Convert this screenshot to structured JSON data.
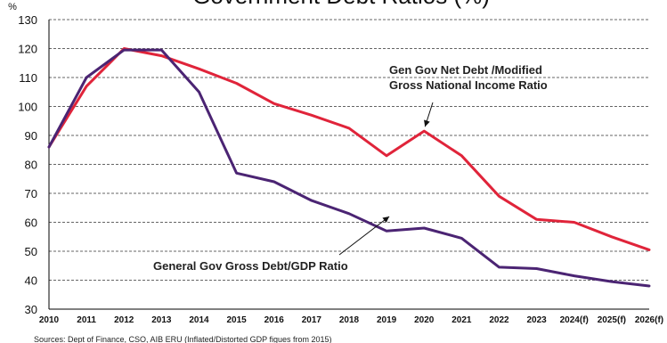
{
  "chart_data": {
    "type": "line",
    "title": "Government Debt Ratios (%)",
    "ylabel": "%",
    "ylim": [
      30,
      130
    ],
    "yticks": [
      30,
      40,
      50,
      60,
      70,
      80,
      90,
      100,
      110,
      120,
      130
    ],
    "categories": [
      "2010",
      "2011",
      "2012",
      "2013",
      "2014",
      "2015",
      "2016",
      "2017",
      "2018",
      "2019",
      "2020",
      "2021",
      "2022",
      "2023",
      "2024(f)",
      "2025(f)",
      "2026(f)"
    ],
    "grid": true,
    "legend": "none",
    "series": [
      {
        "name": "Gen Gov Net Debt /Modified Gross National Income Ratio",
        "color": "#E0243A",
        "values": [
          86,
          107,
          120,
          117.5,
          113,
          108,
          101,
          97,
          92.5,
          83,
          91.5,
          83,
          69,
          61,
          60,
          55,
          50.5
        ]
      },
      {
        "name": "General Gov Gross Debt/GDP Ratio",
        "color": "#4B2473",
        "values": [
          86,
          110,
          119.5,
          119.5,
          105,
          77,
          74,
          67.5,
          63,
          57,
          58,
          54.5,
          44.5,
          44,
          41.5,
          39.5,
          38
        ]
      }
    ],
    "annotations": [
      {
        "lines": [
          "Gen Gov Net Debt /Modified",
          "Gross National Income Ratio"
        ],
        "series_index": 0,
        "arrow_to": {
          "x": "2020",
          "y": 93
        }
      },
      {
        "lines": [
          "General Gov Gross Debt/GDP Ratio"
        ],
        "series_index": 1,
        "arrow_to": {
          "x": "2019",
          "y": 62
        }
      }
    ],
    "source": "Sources: Dept of Finance, CSO, AIB ERU (Inflated/Distorted GDP figues from 2015)"
  }
}
